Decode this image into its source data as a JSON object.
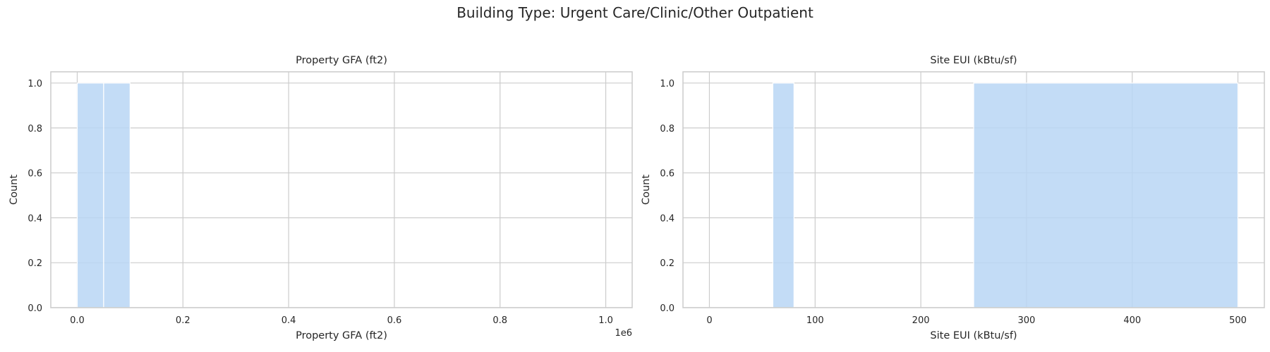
{
  "figure": {
    "title": "Building Type: Urgent Care/Clinic/Other Outpatient"
  },
  "chart_data": [
    {
      "type": "bar",
      "title": "Property GFA (ft2)",
      "xlabel": "Property GFA (ft2)",
      "ylabel": "Count",
      "x_offset_label": "1e6",
      "x_scale": 1000000,
      "xlim": [
        -0.05,
        1.05
      ],
      "ylim": [
        0,
        1.05
      ],
      "xticks": [
        0.0,
        0.2,
        0.4,
        0.6,
        0.8,
        1.0
      ],
      "xtick_labels": [
        "0.0",
        "0.2",
        "0.4",
        "0.6",
        "0.8",
        "1.0"
      ],
      "yticks": [
        0.0,
        0.2,
        0.4,
        0.6,
        0.8,
        1.0
      ],
      "ytick_labels": [
        "0.0",
        "0.2",
        "0.4",
        "0.6",
        "0.8",
        "1.0"
      ],
      "grid": true,
      "color": "#b8d6f5",
      "bins": [
        {
          "start": 0.0,
          "end": 0.05,
          "count": 1
        },
        {
          "start": 0.05,
          "end": 0.1,
          "count": 1
        }
      ]
    },
    {
      "type": "bar",
      "title": "Site EUI (kBtu/sf)",
      "xlabel": "Site EUI (kBtu/sf)",
      "ylabel": "Count",
      "x_offset_label": "",
      "x_scale": 1,
      "xlim": [
        -25,
        525
      ],
      "ylim": [
        0,
        1.05
      ],
      "xticks": [
        0,
        100,
        200,
        300,
        400,
        500
      ],
      "xtick_labels": [
        "0",
        "100",
        "200",
        "300",
        "400",
        "500"
      ],
      "yticks": [
        0.0,
        0.2,
        0.4,
        0.6,
        0.8,
        1.0
      ],
      "ytick_labels": [
        "0.0",
        "0.2",
        "0.4",
        "0.6",
        "0.8",
        "1.0"
      ],
      "grid": true,
      "color": "#b8d6f5",
      "bins": [
        {
          "start": 60,
          "end": 80,
          "count": 1
        },
        {
          "start": 250,
          "end": 500,
          "count": 1
        }
      ]
    }
  ]
}
